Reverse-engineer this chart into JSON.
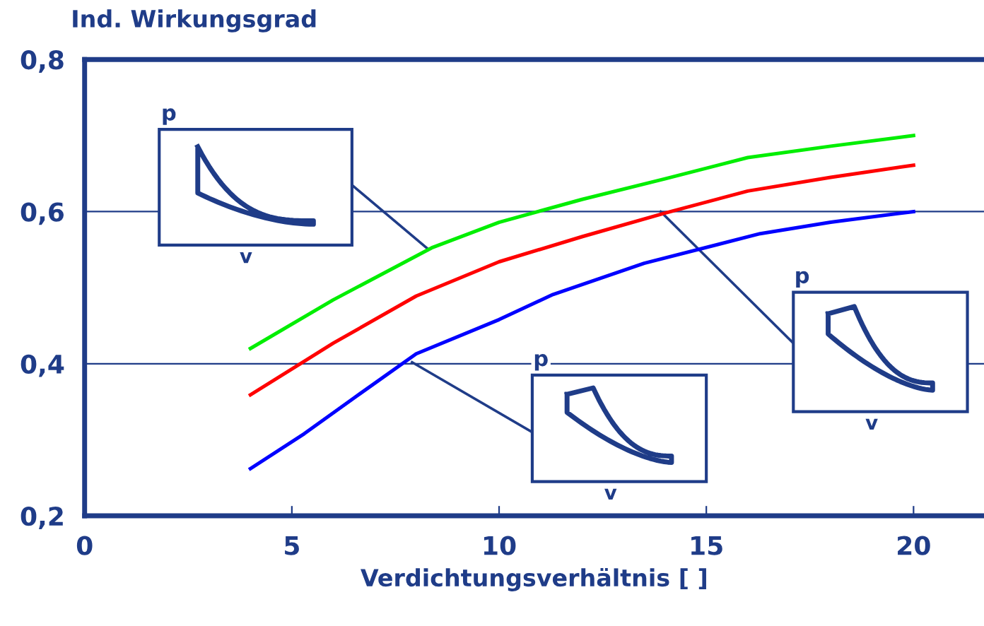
{
  "chart_data": {
    "type": "line",
    "ylabel": "Ind. Wirkungsgrad",
    "xlabel": "Verdichtungsverhältnis [ ]",
    "xlim": [
      0,
      21.7
    ],
    "ylim": [
      0.2,
      0.8
    ],
    "xticks": [
      0,
      5,
      10,
      15,
      20
    ],
    "yticks": [
      {
        "value": 0.2,
        "label": "0,2"
      },
      {
        "value": 0.4,
        "label": "0,4"
      },
      {
        "value": 0.6,
        "label": "0,6"
      },
      {
        "value": 0.8,
        "label": "0,8"
      }
    ],
    "grid": "y",
    "legend": false,
    "series": [
      {
        "color": "#00ee00",
        "x": [
          4,
          6,
          8.4,
          10,
          12,
          14,
          16,
          18,
          20
        ],
        "values": [
          0.42,
          0.484,
          0.553,
          0.586,
          0.616,
          0.643,
          0.671,
          0.686,
          0.7
        ]
      },
      {
        "color": "#ff0000",
        "x": [
          4,
          6,
          8,
          10,
          12,
          14,
          16,
          18,
          20
        ],
        "values": [
          0.359,
          0.427,
          0.489,
          0.534,
          0.567,
          0.598,
          0.627,
          0.645,
          0.661
        ]
      },
      {
        "color": "#0000ff",
        "x": [
          4,
          5.3,
          6.5,
          8,
          10,
          11.3,
          13.5,
          16.3,
          18,
          20
        ],
        "values": [
          0.262,
          0.308,
          0.355,
          0.413,
          0.458,
          0.491,
          0.532,
          0.571,
          0.586,
          0.6
        ]
      }
    ],
    "annotations": [
      "p",
      "v",
      "p",
      "v",
      "p",
      "v"
    ]
  }
}
